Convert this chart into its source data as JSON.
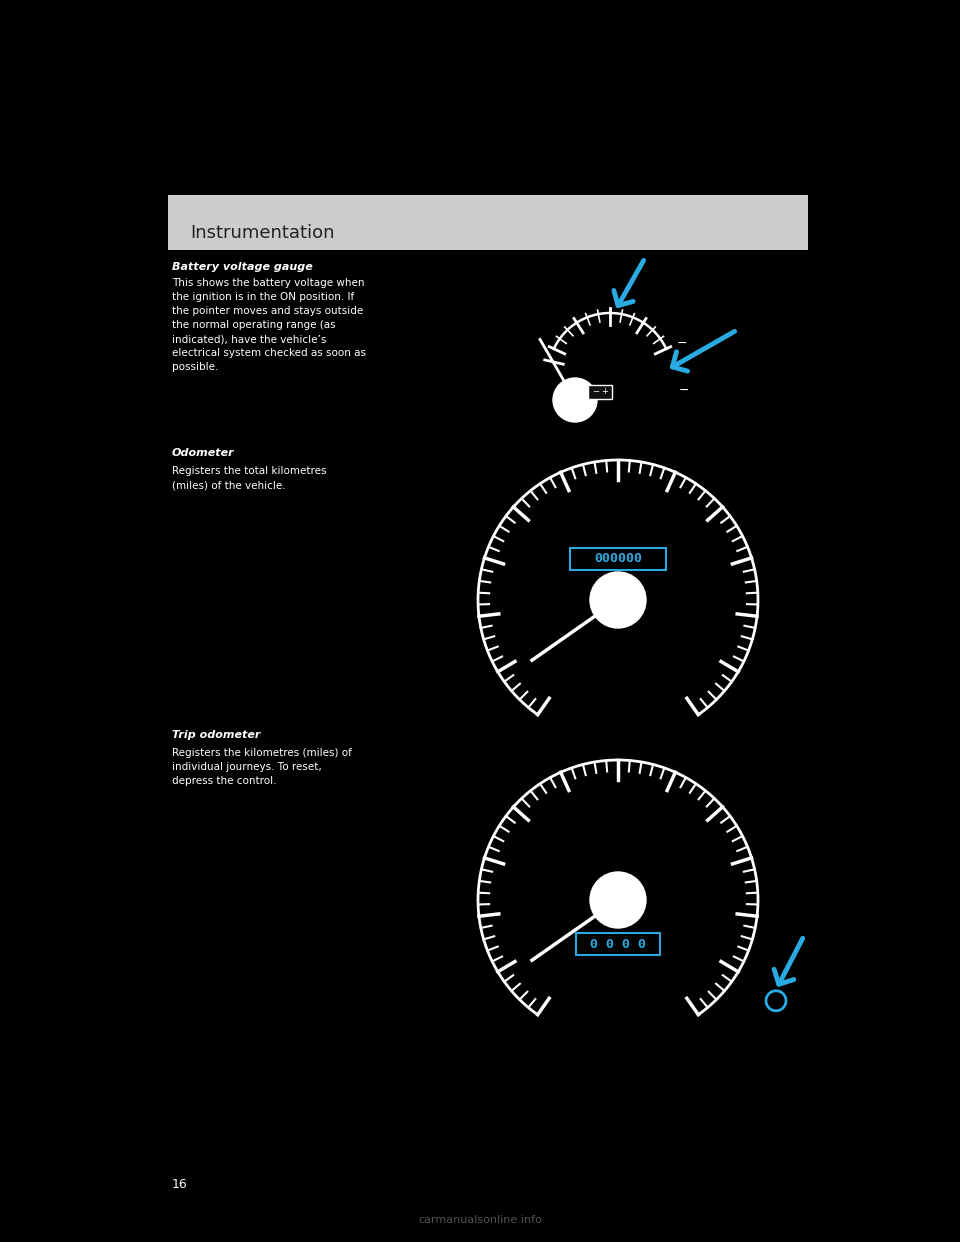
{
  "bg_color": "#000000",
  "header_bg": "#cccccc",
  "header_text": "Instrumentation",
  "header_fontsize": 13,
  "section1_title": "Battery voltage gauge",
  "section1_body": "This shows the battery voltage when\nthe ignition is in the ON position. If\nthe pointer moves and stays outside\nthe normal operating range (as\nindicated), have the vehicle’s\nelectrical system checked as soon as\npossible.",
  "section2_title": "Odometer",
  "section2_body": "Registers the total kilometres\n(miles) of the vehicle.",
  "section3_title": "Trip odometer",
  "section3_body": "Registers the kilometres (miles) of\nindividual journeys. To reset,\ndepress the control.",
  "page_num": "16",
  "white": "#ffffff",
  "cyan_arrow": "#29ABE2",
  "text_dark": "#222222"
}
